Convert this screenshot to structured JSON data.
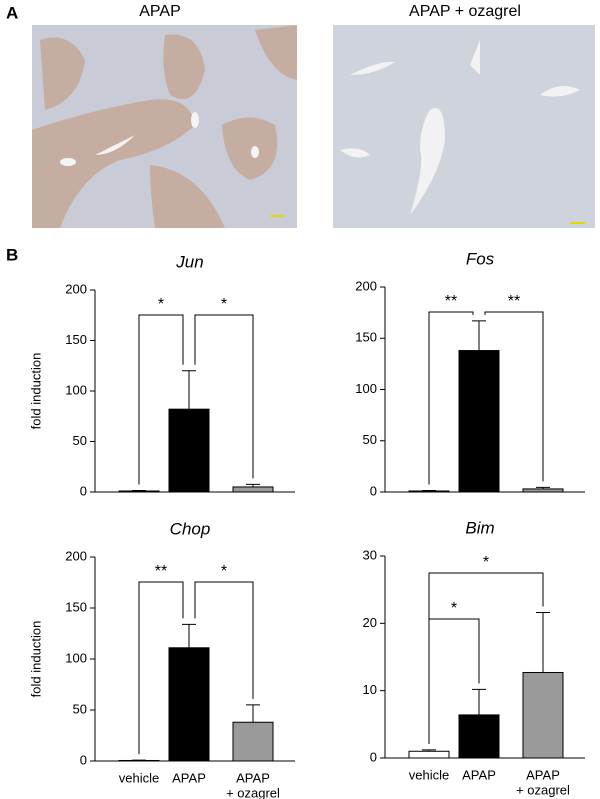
{
  "panel_a": {
    "label": "A",
    "captions": [
      "APAP",
      "APAP + ozagrel"
    ]
  },
  "panel_b": {
    "label": "B"
  },
  "chart_data": [
    {
      "type": "bar",
      "title": "Jun",
      "y_label": "fold induction",
      "categories": [
        null,
        null,
        null
      ],
      "values": [
        1,
        82,
        5
      ],
      "errors": [
        0.5,
        38,
        2.5
      ],
      "colors": [
        "#ffffff",
        "#000000",
        "#9a9a9a"
      ],
      "ylim": [
        0,
        200
      ],
      "yticks": [
        0,
        50,
        100,
        150,
        200
      ],
      "annotations": [
        {
          "from": 0,
          "to": 1,
          "text": "*"
        },
        {
          "from": 1,
          "to": 2,
          "text": "*"
        }
      ]
    },
    {
      "type": "bar",
      "title": "Fos",
      "categories": [
        null,
        null,
        null
      ],
      "values": [
        1,
        138,
        3
      ],
      "errors": [
        0.5,
        29,
        1.5
      ],
      "colors": [
        "#ffffff",
        "#000000",
        "#9a9a9a"
      ],
      "ylim": [
        0,
        200
      ],
      "yticks": [
        0,
        50,
        100,
        150,
        200
      ],
      "annotations": [
        {
          "from": 0,
          "to": 1,
          "text": "**"
        },
        {
          "from": 1,
          "to": 2,
          "text": "**"
        }
      ]
    },
    {
      "type": "bar",
      "title": "Chop",
      "y_label": "fold induction",
      "categories": [
        "vehicle",
        "APAP",
        [
          "APAP",
          "+ ozagrel"
        ]
      ],
      "values": [
        0.5,
        111,
        38
      ],
      "errors": [
        0.3,
        23,
        17
      ],
      "colors": [
        "#ffffff",
        "#000000",
        "#9a9a9a"
      ],
      "ylim": [
        0,
        200
      ],
      "yticks": [
        0,
        50,
        100,
        150,
        200
      ],
      "annotations": [
        {
          "from": 0,
          "to": 1,
          "text": "**"
        },
        {
          "from": 1,
          "to": 2,
          "text": "*"
        }
      ]
    },
    {
      "type": "bar",
      "title": "Bim",
      "categories": [
        "vehicle",
        "APAP",
        [
          "APAP",
          "+ ozagrel"
        ]
      ],
      "values": [
        1,
        6.4,
        12.7
      ],
      "errors": [
        0.2,
        3.8,
        8.9
      ],
      "colors": [
        "#ffffff",
        "#000000",
        "#9a9a9a"
      ],
      "ylim": [
        0,
        30
      ],
      "yticks": [
        0,
        10,
        20,
        30
      ],
      "annotations": [
        {
          "from": 0,
          "to": 2,
          "text": "*"
        },
        {
          "from": 0,
          "to": 1,
          "text": "*"
        }
      ]
    }
  ]
}
